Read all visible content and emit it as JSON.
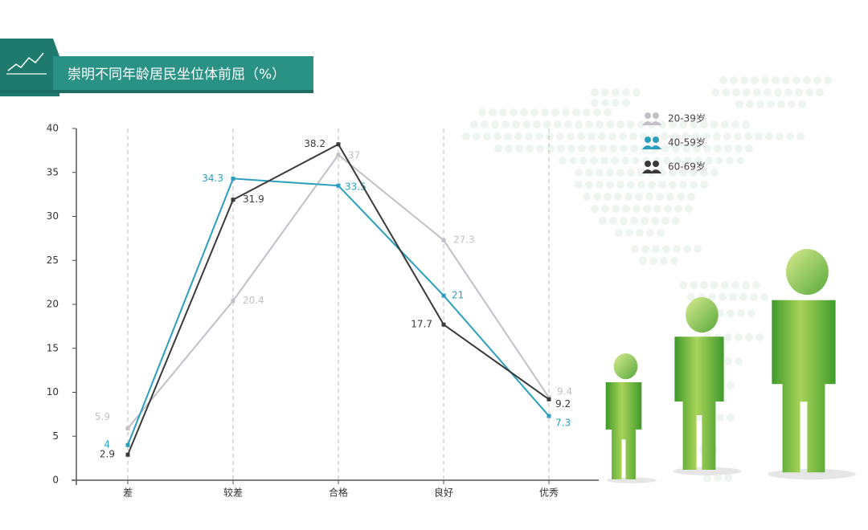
{
  "chart_data": {
    "type": "line",
    "title": "崇明不同年龄居民坐位体前屈（%）",
    "categories": [
      "差",
      "较差",
      "合格",
      "良好",
      "优秀"
    ],
    "series": [
      {
        "name": "20-39岁",
        "color": "#c3bfc8",
        "values": [
          5.9,
          20.4,
          37,
          27.3,
          9.4
        ]
      },
      {
        "name": "40-59岁",
        "color": "#2a9fbd",
        "values": [
          4,
          34.3,
          33.5,
          21,
          7.3
        ]
      },
      {
        "name": "60-69岁",
        "color": "#3a3a3a",
        "values": [
          2.9,
          31.9,
          38.2,
          17.7,
          9.2
        ]
      }
    ],
    "ylim": [
      0,
      40
    ],
    "yticks": [
      0,
      5,
      10,
      15,
      20,
      25,
      30,
      35,
      40
    ],
    "legend": "upper right"
  }
}
